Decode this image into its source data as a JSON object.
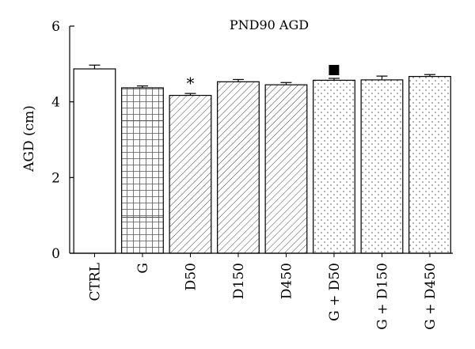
{
  "chart_data": {
    "type": "bar",
    "title": "PND90 AGD",
    "xlabel": "",
    "ylabel": "AGD (cm)",
    "ylim": [
      0,
      6
    ],
    "yticks": [
      0,
      2,
      4,
      6
    ],
    "grid": false,
    "legend": "none",
    "categories": [
      "CTRL",
      "G",
      "D50",
      "D150",
      "D450",
      "G + D50",
      "G + D150",
      "G + D450"
    ],
    "values": [
      4.87,
      4.37,
      4.17,
      4.53,
      4.45,
      4.57,
      4.58,
      4.67
    ],
    "errors": [
      0.1,
      0.05,
      0.05,
      0.06,
      0.06,
      0.05,
      0.1,
      0.05
    ],
    "fills": [
      "plain",
      "grid",
      "hatch",
      "hatch",
      "hatch",
      "dots",
      "dots",
      "dots"
    ],
    "annotations": [
      {
        "category": "D50",
        "marker": "*"
      },
      {
        "category": "G + D50",
        "marker": "■"
      }
    ]
  }
}
